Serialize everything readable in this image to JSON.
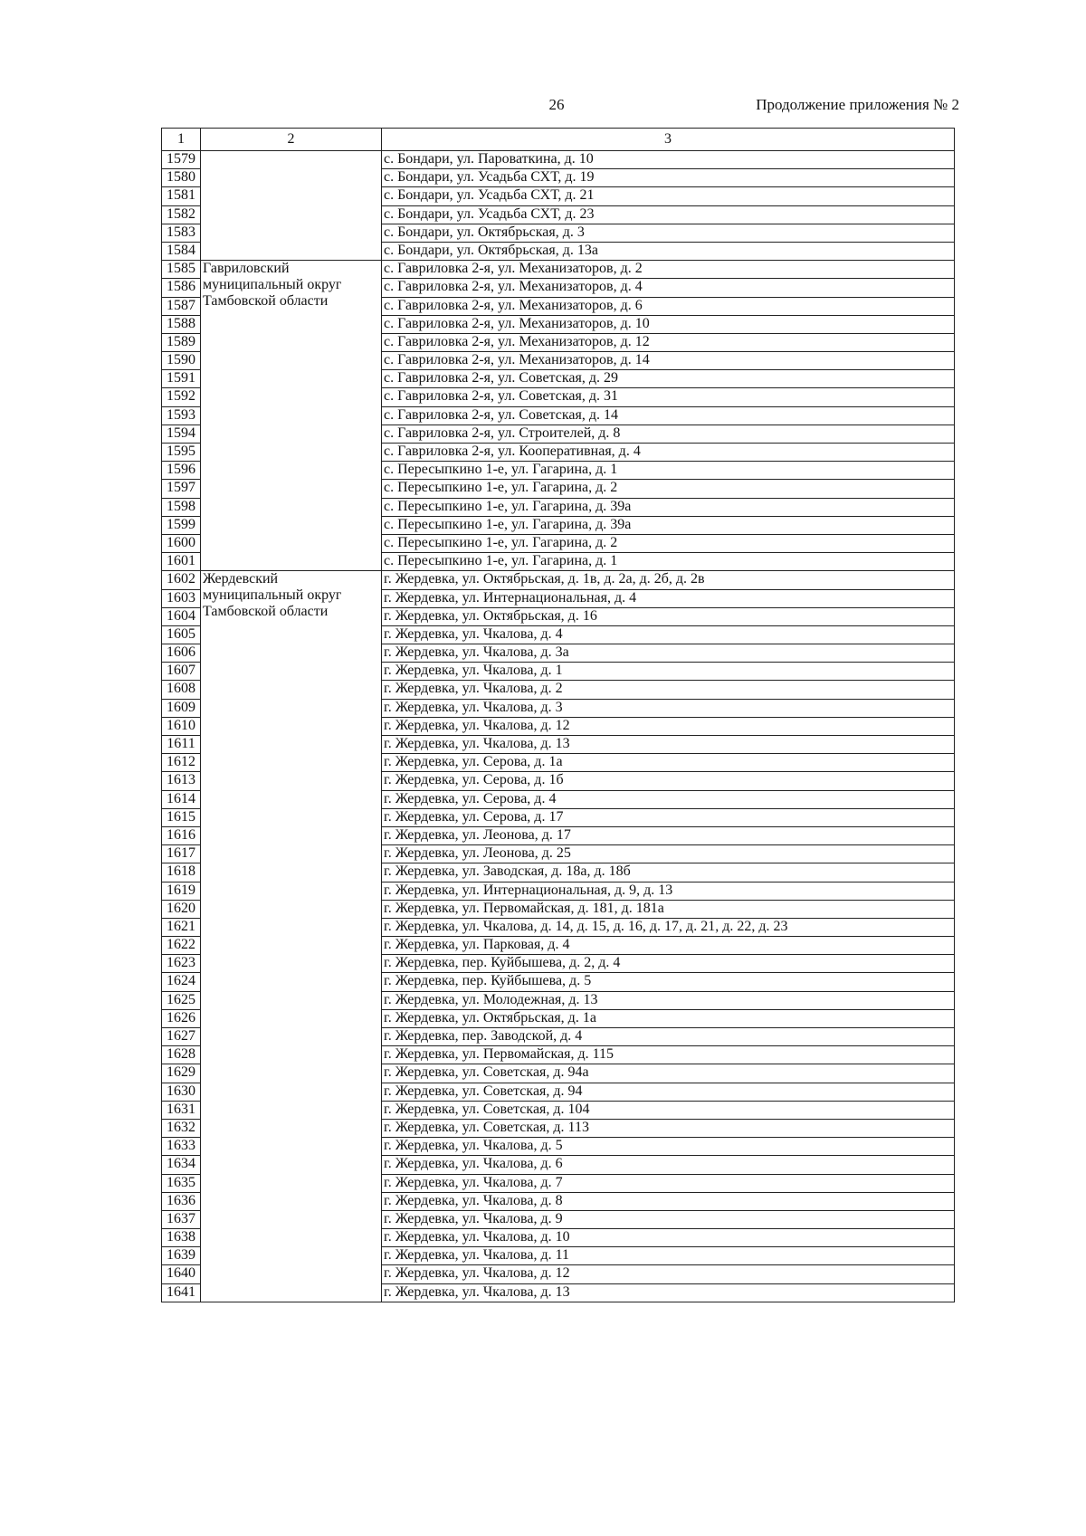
{
  "header": {
    "page_number": "26",
    "continuation": "Продолжение приложения № 2"
  },
  "table": {
    "columns": [
      "1",
      "2",
      "3"
    ],
    "groups": [
      {
        "district": [],
        "rows": [
          [
            "1579",
            "с. Бондари, ул. Пароваткина, д. 10"
          ],
          [
            "1580",
            "с. Бондари, ул. Усадьба СХТ, д. 19"
          ],
          [
            "1581",
            "с. Бондари, ул. Усадьба СХТ, д. 21"
          ],
          [
            "1582",
            "с. Бондари, ул. Усадьба СХТ, д. 23"
          ],
          [
            "1583",
            "с. Бондари, ул. Октябрьская, д. 3"
          ],
          [
            "1584",
            "с. Бондари, ул. Октябрьская, д. 13а"
          ]
        ]
      },
      {
        "district": [
          "Гавриловский",
          "муниципальный округ",
          "Тамбовской области"
        ],
        "rows": [
          [
            "1585",
            "с. Гавриловка 2-я, ул. Механизаторов, д. 2"
          ],
          [
            "1586",
            "с. Гавриловка 2-я, ул. Механизаторов, д. 4"
          ],
          [
            "1587",
            "с. Гавриловка 2-я, ул. Механизаторов, д. 6"
          ],
          [
            "1588",
            "с. Гавриловка 2-я, ул. Механизаторов, д. 10"
          ],
          [
            "1589",
            "с. Гавриловка 2-я, ул. Механизаторов, д. 12"
          ],
          [
            "1590",
            "с. Гавриловка 2-я, ул. Механизаторов, д. 14"
          ],
          [
            "1591",
            "с. Гавриловка 2-я, ул. Советская, д. 29"
          ],
          [
            "1592",
            "с. Гавриловка 2-я, ул. Советская, д. 31"
          ],
          [
            "1593",
            "с. Гавриловка 2-я, ул. Советская, д. 14"
          ],
          [
            "1594",
            "с. Гавриловка 2-я, ул. Строителей, д. 8"
          ],
          [
            "1595",
            "с. Гавриловка 2-я, ул. Кооперативная, д. 4"
          ],
          [
            "1596",
            "с. Пересыпкино 1-е, ул. Гагарина, д. 1"
          ],
          [
            "1597",
            "с. Пересыпкино 1-е, ул. Гагарина, д. 2"
          ],
          [
            "1598",
            "с. Пересыпкино 1-е, ул. Гагарина, д. 39а"
          ],
          [
            "1599",
            "с. Пересыпкино 1-е, ул. Гагарина, д. 39а"
          ],
          [
            "1600",
            "с. Пересыпкино 1-е, ул. Гагарина, д. 2"
          ],
          [
            "1601",
            "с. Пересыпкино 1-е, ул. Гагарина, д. 1"
          ]
        ]
      },
      {
        "district": [
          "Жердевский",
          "муниципальный округ",
          "Тамбовской области"
        ],
        "rows": [
          [
            "1602",
            "г. Жердевка, ул. Октябрьская, д. 1в, д. 2а, д. 2б, д. 2в"
          ],
          [
            "1603",
            "г. Жердевка, ул. Интернациональная, д. 4"
          ],
          [
            "1604",
            "г. Жердевка, ул. Октябрьская, д. 16"
          ],
          [
            "1605",
            "г. Жердевка, ул. Чкалова, д. 4"
          ],
          [
            "1606",
            "г. Жердевка, ул. Чкалова, д. 3а"
          ],
          [
            "1607",
            "г. Жердевка, ул. Чкалова, д. 1"
          ],
          [
            "1608",
            "г. Жердевка, ул. Чкалова, д. 2"
          ],
          [
            "1609",
            "г. Жердевка, ул. Чкалова, д. 3"
          ],
          [
            "1610",
            "г. Жердевка, ул. Чкалова, д. 12"
          ],
          [
            "1611",
            "г. Жердевка, ул. Чкалова, д. 13"
          ],
          [
            "1612",
            "г. Жердевка, ул. Серова, д. 1а"
          ],
          [
            "1613",
            "г. Жердевка, ул. Серова, д. 1б"
          ],
          [
            "1614",
            "г. Жердевка, ул. Серова, д. 4"
          ],
          [
            "1615",
            "г. Жердевка, ул. Серова, д. 17"
          ],
          [
            "1616",
            "г. Жердевка, ул. Леонова, д. 17"
          ],
          [
            "1617",
            "г. Жердевка, ул. Леонова, д. 25"
          ],
          [
            "1618",
            "г. Жердевка, ул. Заводская, д. 18а, д. 18б"
          ],
          [
            "1619",
            "г. Жердевка, ул. Интернациональная, д. 9, д. 13"
          ],
          [
            "1620",
            "г. Жердевка, ул. Первомайская, д. 181, д. 181а"
          ],
          [
            "1621",
            "г. Жердевка, ул. Чкалова, д. 14, д. 15, д. 16, д. 17, д. 21, д. 22, д. 23"
          ],
          [
            "1622",
            "г. Жердевка, ул. Парковая, д. 4"
          ],
          [
            "1623",
            "г. Жердевка, пер. Куйбышева, д. 2, д. 4"
          ],
          [
            "1624",
            "г. Жердевка, пер. Куйбышева, д. 5"
          ],
          [
            "1625",
            "г. Жердевка, ул. Молодежная, д. 13"
          ],
          [
            "1626",
            "г. Жердевка, ул. Октябрьская, д. 1а"
          ],
          [
            "1627",
            "г. Жердевка, пер. Заводской, д. 4"
          ],
          [
            "1628",
            "г. Жердевка, ул. Первомайская, д. 115"
          ],
          [
            "1629",
            "г. Жердевка, ул. Советская, д. 94а"
          ],
          [
            "1630",
            "г. Жердевка, ул. Советская, д. 94"
          ],
          [
            "1631",
            "г. Жердевка, ул. Советская, д. 104"
          ],
          [
            "1632",
            "г. Жердевка, ул. Советская, д. 113"
          ],
          [
            "1633",
            "г. Жердевка, ул. Чкалова, д. 5"
          ],
          [
            "1634",
            "г. Жердевка, ул. Чкалова, д. 6"
          ],
          [
            "1635",
            "г. Жердевка, ул. Чкалова, д. 7"
          ],
          [
            "1636",
            "г. Жердевка, ул. Чкалова, д. 8"
          ],
          [
            "1637",
            "г. Жердевка, ул. Чкалова, д. 9"
          ],
          [
            "1638",
            "г. Жердевка, ул. Чкалова, д. 10"
          ],
          [
            "1639",
            "г. Жердевка, ул. Чкалова, д. 11"
          ],
          [
            "1640",
            "г. Жердевка, ул. Чкалова, д. 12"
          ],
          [
            "1641",
            "г. Жердевка, ул. Чкалова, д. 13"
          ]
        ]
      }
    ]
  }
}
